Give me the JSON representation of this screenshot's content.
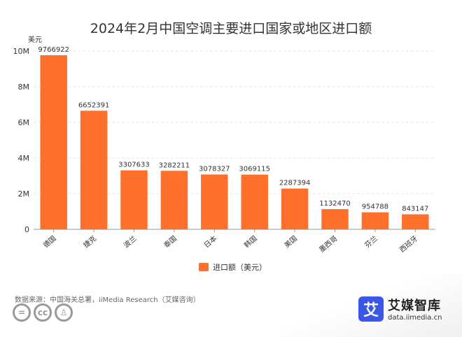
{
  "title": "2024年2月中国空调主要进口国家或地区进口额",
  "legend_label": "进口额（美元）",
  "source": "数据来源：中国海关总署，iiMedia Research（艾媒咨询）",
  "brand": {
    "name": "艾媒智库",
    "url": "data.iimedia.cn",
    "logo_char": "艾"
  },
  "license_icons": [
    "equals-icon",
    "cc-icon",
    "person-icon"
  ],
  "colors": {
    "bar": "#ff6f2c",
    "grid": "#e5e5e5",
    "axis": "#999999"
  },
  "chart_data": {
    "type": "bar",
    "title": "2024年2月中国空调主要进口国家或地区进口额",
    "ylabel": "美元",
    "xlabel": "",
    "categories": [
      "德国",
      "捷克",
      "波兰",
      "泰国",
      "日本",
      "韩国",
      "美国",
      "墨西哥",
      "芬兰",
      "西班牙"
    ],
    "series": [
      {
        "name": "进口额（美元）",
        "values": [
          9766922,
          6652391,
          3307633,
          3282211,
          3078327,
          3069115,
          2287394,
          1132470,
          954788,
          843147
        ]
      }
    ],
    "ylim": [
      0,
      10000000
    ],
    "yticks": [
      0,
      2000000,
      4000000,
      6000000,
      8000000,
      10000000
    ],
    "ytick_labels": [
      "0",
      "2M",
      "4M",
      "6M",
      "8M",
      "10M"
    ],
    "grid": true,
    "legend_position": "bottom-center"
  }
}
